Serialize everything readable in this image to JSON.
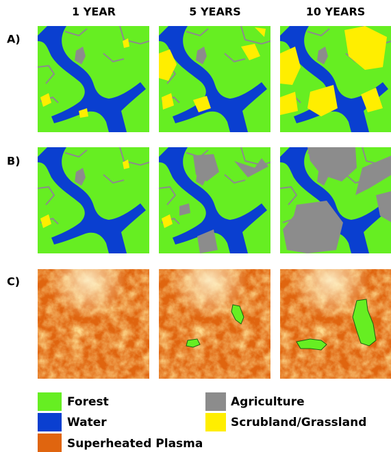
{
  "columns": [
    "1 YEAR",
    "5 YEARS",
    "10 YEARS"
  ],
  "rows": [
    "A)",
    "B)",
    "C)"
  ],
  "legend": [
    {
      "label": "Forest",
      "color": "#66ee22"
    },
    {
      "label": "Water",
      "color": "#0a3fd0"
    },
    {
      "label": "Superheated Plasma",
      "color": "#e0650f"
    },
    {
      "label": "Agriculture",
      "color": "#8c8c8c"
    },
    {
      "label": "Scrubland/Grassland",
      "color": "#ffee00"
    }
  ]
}
